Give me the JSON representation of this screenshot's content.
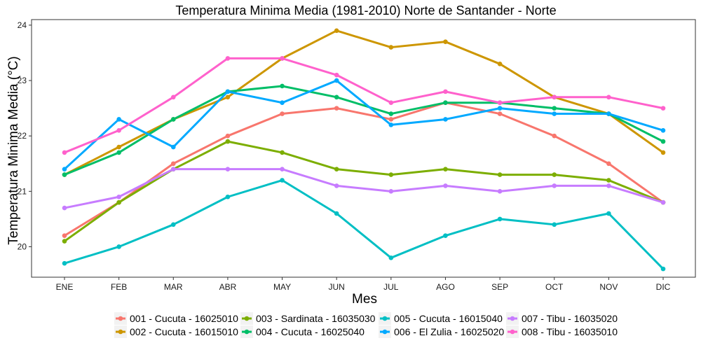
{
  "chart_data": {
    "type": "line",
    "title": "Temperatura Minima Media (1981-2010)  Norte de Santander - Norte",
    "xlabel": "Mes",
    "ylabel": "Temperatura Minima Media  (°C)",
    "categories": [
      "ENE",
      "FEB",
      "MAR",
      "ABR",
      "MAY",
      "JUN",
      "JUL",
      "AGO",
      "SEP",
      "OCT",
      "NOV",
      "DIC"
    ],
    "ylim": [
      19.45,
      24.1
    ],
    "yticks": [
      20,
      21,
      22,
      23,
      24
    ],
    "grid": false,
    "legend_position": "bottom",
    "series": [
      {
        "name": "001 - Cucuta - 16025010",
        "color": "#F8766D",
        "values": [
          20.2,
          20.8,
          21.5,
          22.0,
          22.4,
          22.5,
          22.3,
          22.6,
          22.4,
          22.0,
          21.5,
          20.8
        ]
      },
      {
        "name": "002 - Cucuta - 16015010",
        "color": "#CD9600",
        "values": [
          21.3,
          21.8,
          22.3,
          22.7,
          23.4,
          23.9,
          23.6,
          23.7,
          23.3,
          22.7,
          22.4,
          21.7
        ]
      },
      {
        "name": "003 - Sardinata - 16035030",
        "color": "#7CAE00",
        "values": [
          20.1,
          20.8,
          21.4,
          21.9,
          21.7,
          21.4,
          21.3,
          21.4,
          21.3,
          21.3,
          21.2,
          20.8
        ]
      },
      {
        "name": "004 - Cucuta - 16025040",
        "color": "#00BE67",
        "values": [
          21.3,
          21.7,
          22.3,
          22.8,
          22.9,
          22.7,
          22.4,
          22.6,
          22.6,
          22.5,
          22.4,
          21.9
        ]
      },
      {
        "name": "005 - Cucuta - 16015040",
        "color": "#00BFC4",
        "values": [
          19.7,
          20.0,
          20.4,
          20.9,
          21.2,
          20.6,
          19.8,
          20.2,
          20.5,
          20.4,
          20.6,
          19.6
        ]
      },
      {
        "name": "006 - El Zulia - 16025020",
        "color": "#00A9FF",
        "values": [
          21.4,
          22.3,
          21.8,
          22.8,
          22.6,
          23.0,
          22.2,
          22.3,
          22.5,
          22.4,
          22.4,
          22.1
        ]
      },
      {
        "name": "007 - Tibu - 16035020",
        "color": "#C77CFF",
        "values": [
          20.7,
          20.9,
          21.4,
          21.4,
          21.4,
          21.1,
          21.0,
          21.1,
          21.0,
          21.1,
          21.1,
          20.8
        ]
      },
      {
        "name": "008 - Tibu - 16035010",
        "color": "#FF61CC",
        "values": [
          21.7,
          22.1,
          22.7,
          23.4,
          23.4,
          23.1,
          22.6,
          22.8,
          22.6,
          22.7,
          22.7,
          22.5
        ]
      }
    ]
  }
}
